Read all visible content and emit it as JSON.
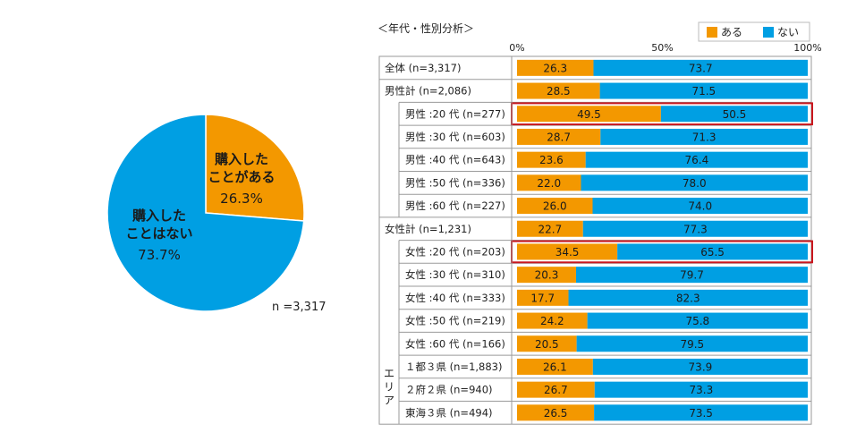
{
  "pie": {
    "slices": [
      {
        "label_line1": "購入した",
        "label_line2": "ことがある",
        "value": 26.3,
        "value_label": "26.3%",
        "color": "#F39800"
      },
      {
        "label_line1": "購入した",
        "label_line2": "ことはない",
        "value": 73.7,
        "value_label": "73.7%",
        "color": "#009FE3"
      }
    ],
    "n_label": "n =3,317"
  },
  "bar_chart": {
    "title": "＜年代・性別分析＞",
    "legend": [
      {
        "label": "ある",
        "color": "#F39800"
      },
      {
        "label": "ない",
        "color": "#009FE3"
      }
    ],
    "axis_ticks": [
      "0%",
      "50%",
      "100%"
    ],
    "group_label_area": "エリア",
    "highlight_color": "#C8161D"
  },
  "chart_data": [
    {
      "type": "pie",
      "categories": [
        "購入したことがある",
        "購入したことはない"
      ],
      "values": [
        26.3,
        73.7
      ]
    },
    {
      "type": "bar",
      "orientation": "horizontal-stacked-100",
      "series": [
        {
          "name": "ある"
        },
        {
          "name": "ない"
        }
      ],
      "rows": [
        {
          "label": "全体 (n=3,317)",
          "indent": 0,
          "aru": 26.3,
          "nai": 73.7
        },
        {
          "label": "男性計 (n=2,086)",
          "indent": 0,
          "aru": 28.5,
          "nai": 71.5
        },
        {
          "label": "男性 :20 代 (n=277)",
          "indent": 1,
          "aru": 49.5,
          "nai": 50.5,
          "highlight": true
        },
        {
          "label": "男性 :30 代 (n=603)",
          "indent": 1,
          "aru": 28.7,
          "nai": 71.3
        },
        {
          "label": "男性 :40 代 (n=643)",
          "indent": 1,
          "aru": 23.6,
          "nai": 76.4
        },
        {
          "label": "男性 :50 代 (n=336)",
          "indent": 1,
          "aru": 22.0,
          "nai": 78.0
        },
        {
          "label": "男性 :60 代 (n=227)",
          "indent": 1,
          "aru": 26.0,
          "nai": 74.0
        },
        {
          "label": "女性計 (n=1,231)",
          "indent": 0,
          "aru": 22.7,
          "nai": 77.3
        },
        {
          "label": "女性 :20 代 (n=203)",
          "indent": 1,
          "aru": 34.5,
          "nai": 65.5,
          "highlight": true
        },
        {
          "label": "女性 :30 代 (n=310)",
          "indent": 1,
          "aru": 20.3,
          "nai": 79.7
        },
        {
          "label": "女性 :40 代 (n=333)",
          "indent": 1,
          "aru": 17.7,
          "nai": 82.3
        },
        {
          "label": "女性 :50 代 (n=219)",
          "indent": 1,
          "aru": 24.2,
          "nai": 75.8
        },
        {
          "label": "女性 :60 代 (n=166)",
          "indent": 1,
          "aru": 20.5,
          "nai": 79.5
        },
        {
          "label": "１都３県 (n=1,883)",
          "indent": 1,
          "group": "area",
          "aru": 26.1,
          "nai": 73.9
        },
        {
          "label": "２府２県 (n=940)",
          "indent": 1,
          "group": "area",
          "aru": 26.7,
          "nai": 73.3
        },
        {
          "label": "東海３県 (n=494)",
          "indent": 1,
          "group": "area",
          "aru": 26.5,
          "nai": 73.5
        }
      ],
      "xlim": [
        0,
        100
      ]
    }
  ]
}
